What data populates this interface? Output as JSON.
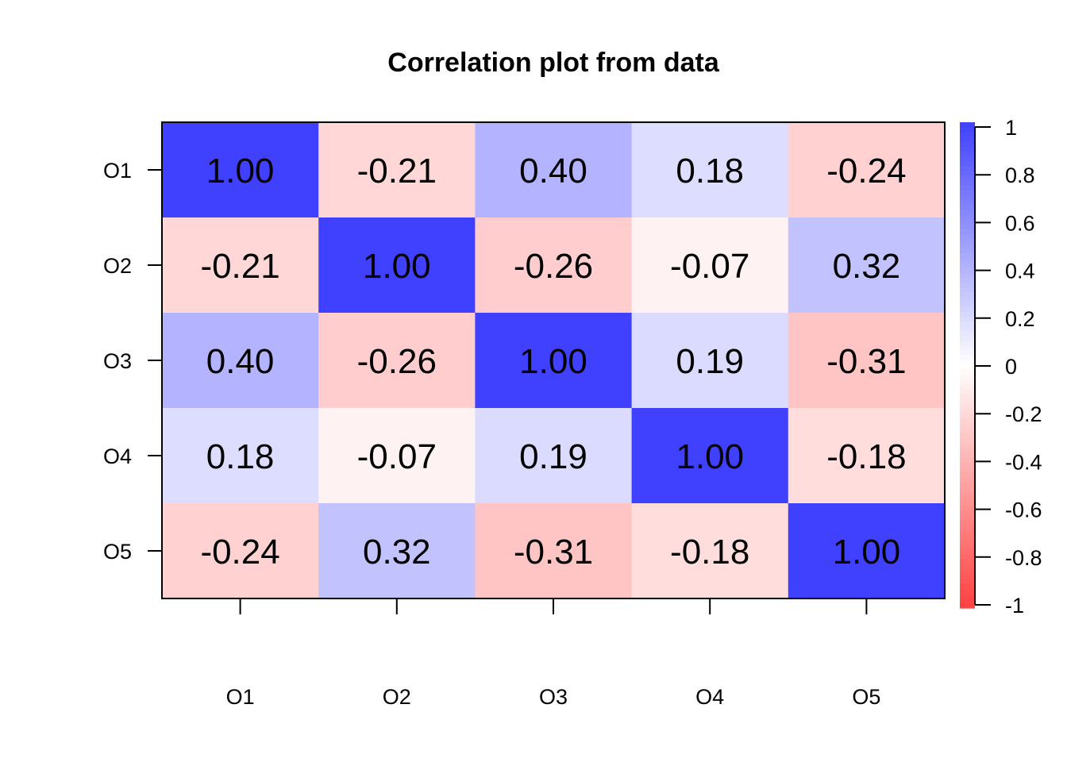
{
  "chart_data": {
    "type": "heatmap",
    "title": "Correlation plot from data",
    "x_labels": [
      "O1",
      "O2",
      "O3",
      "O4",
      "O5"
    ],
    "y_labels": [
      "O1",
      "O2",
      "O3",
      "O4",
      "O5"
    ],
    "values": [
      [
        1.0,
        -0.21,
        0.4,
        0.18,
        -0.24
      ],
      [
        -0.21,
        1.0,
        -0.26,
        -0.07,
        0.32
      ],
      [
        0.4,
        -0.26,
        1.0,
        0.19,
        -0.31
      ],
      [
        0.18,
        -0.07,
        0.19,
        1.0,
        -0.18
      ],
      [
        -0.24,
        0.32,
        -0.31,
        -0.18,
        1.0
      ]
    ],
    "value_labels": [
      [
        "1.00",
        "-0.21",
        "0.40",
        "0.18",
        "-0.24"
      ],
      [
        "-0.21",
        "1.00",
        "-0.26",
        "-0.07",
        "0.32"
      ],
      [
        "0.40",
        "-0.26",
        "1.00",
        "0.19",
        "-0.31"
      ],
      [
        "0.18",
        "-0.07",
        "0.19",
        "1.00",
        "-0.18"
      ],
      [
        "-0.24",
        "0.32",
        "-0.31",
        "-0.18",
        "1.00"
      ]
    ],
    "color_scale": {
      "min": -1,
      "max": 1,
      "low_color": "#ff4040",
      "mid_color": "#ffffff",
      "high_color": "#4040ff",
      "legend_ticks": [
        1,
        0.8,
        0.6,
        0.4,
        0.2,
        0,
        -0.2,
        -0.4,
        -0.6,
        -0.8,
        -1
      ],
      "legend_tick_labels": [
        "1",
        "0.8",
        "0.6",
        "0.4",
        "0.2",
        "0",
        "-0.2",
        "-0.4",
        "-0.6",
        "-0.8",
        "-1"
      ],
      "legend_placement": "right"
    },
    "grid": false
  }
}
